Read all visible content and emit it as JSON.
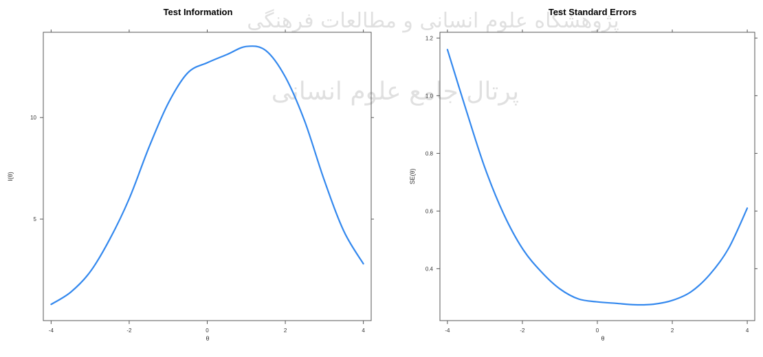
{
  "colors": {
    "curve": "#3388ee",
    "frame": "#555555",
    "watermark": "#c8c8c8"
  },
  "watermark": {
    "line1": "پژوهشگاه علوم انسانی و مطالعات فرهنگی",
    "line2": "پرتال جامع علوم انسانی"
  },
  "chart_data": [
    {
      "type": "line",
      "title": "Test Information",
      "xlabel": "θ",
      "ylabel": "I(θ)",
      "xlim": [
        -4.2,
        4.2
      ],
      "ylim": [
        0,
        14.2
      ],
      "xticks": [
        -4,
        -2,
        0,
        2,
        4
      ],
      "xtick_labels": [
        "-4",
        "-2",
        "0",
        "2",
        "4"
      ],
      "yticks": [
        5,
        10
      ],
      "ytick_labels": [
        "5",
        "10"
      ],
      "grid": false,
      "series": [
        {
          "x": [
            -4,
            -3.5,
            -3,
            -2.5,
            -2,
            -1.5,
            -1,
            -0.5,
            0,
            0.5,
            1,
            1.5,
            2,
            2.5,
            3,
            3.5,
            4
          ],
          "y": [
            0.8,
            1.4,
            2.4,
            4.0,
            6.0,
            8.5,
            10.7,
            12.2,
            12.7,
            13.1,
            13.5,
            13.3,
            12.0,
            9.8,
            6.9,
            4.4,
            2.8
          ]
        }
      ]
    },
    {
      "type": "line",
      "title": "Test Standard Errors",
      "xlabel": "θ",
      "ylabel": "SE(θ)",
      "xlim": [
        -4.2,
        4.2
      ],
      "ylim": [
        0.22,
        1.22
      ],
      "xticks": [
        -4,
        -2,
        0,
        2,
        4
      ],
      "xtick_labels": [
        "-4",
        "-2",
        "0",
        "2",
        "4"
      ],
      "yticks": [
        0.4,
        0.6,
        0.8,
        1.0,
        1.2
      ],
      "ytick_labels": [
        "0.4",
        "0.6",
        "0.8",
        "1.0",
        "1.2"
      ],
      "grid": false,
      "series": [
        {
          "x": [
            -4,
            -3.5,
            -3,
            -2.5,
            -2,
            -1.5,
            -1,
            -0.5,
            0,
            0.5,
            1,
            1.5,
            2,
            2.5,
            3,
            3.5,
            4
          ],
          "y": [
            1.16,
            0.95,
            0.75,
            0.59,
            0.47,
            0.39,
            0.33,
            0.295,
            0.285,
            0.28,
            0.275,
            0.277,
            0.29,
            0.32,
            0.38,
            0.47,
            0.61
          ]
        }
      ]
    }
  ]
}
